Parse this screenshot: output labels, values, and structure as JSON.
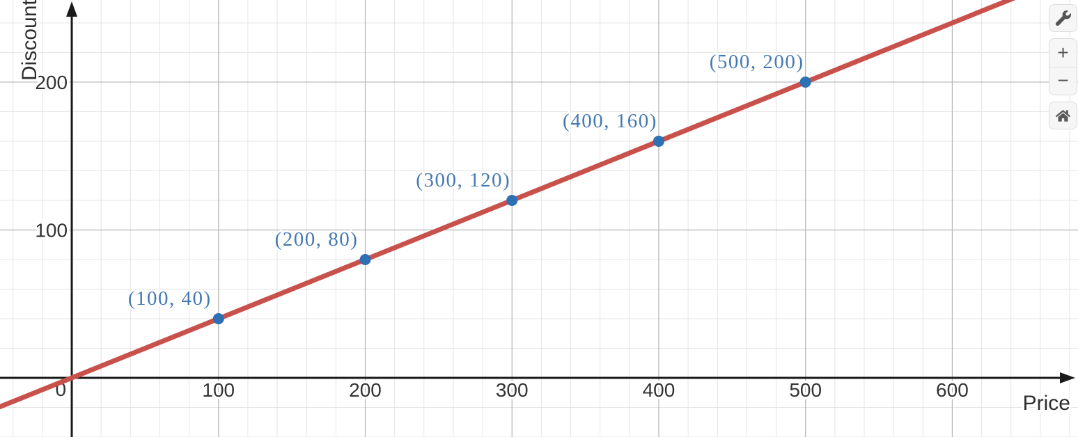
{
  "chart_data": {
    "type": "line",
    "title": "",
    "xlabel": "Price",
    "ylabel": "Discount",
    "xlim": [
      -48.9,
      685.7
    ],
    "ylim": [
      -40,
      255.5
    ],
    "x_ticks": [
      100,
      200,
      300,
      400,
      500,
      600
    ],
    "y_ticks": [
      100,
      200
    ],
    "origin_label": "0",
    "major_step": 100,
    "minor_step": 20,
    "grid": true,
    "line": {
      "slope": 0.4,
      "intercept": 0,
      "color": "#c9514c"
    },
    "points": [
      {
        "x": 100,
        "y": 40,
        "label": "(100, 40)"
      },
      {
        "x": 200,
        "y": 80,
        "label": "(200, 80)"
      },
      {
        "x": 300,
        "y": 120,
        "label": "(300, 120)"
      },
      {
        "x": 400,
        "y": 160,
        "label": "(400, 160)"
      },
      {
        "x": 500,
        "y": 200,
        "label": "(500, 200)"
      }
    ],
    "point_color": "#2d70b3",
    "label_color": "#4579b2",
    "axis_color": "#1a1a1a",
    "major_grid_color": "#b3b3b3",
    "minor_grid_color": "#e4e4e4"
  },
  "toolbar": {
    "settings_icon": "wrench-icon",
    "zoom_in_label": "+",
    "zoom_out_label": "−",
    "home_icon": "home-icon"
  }
}
